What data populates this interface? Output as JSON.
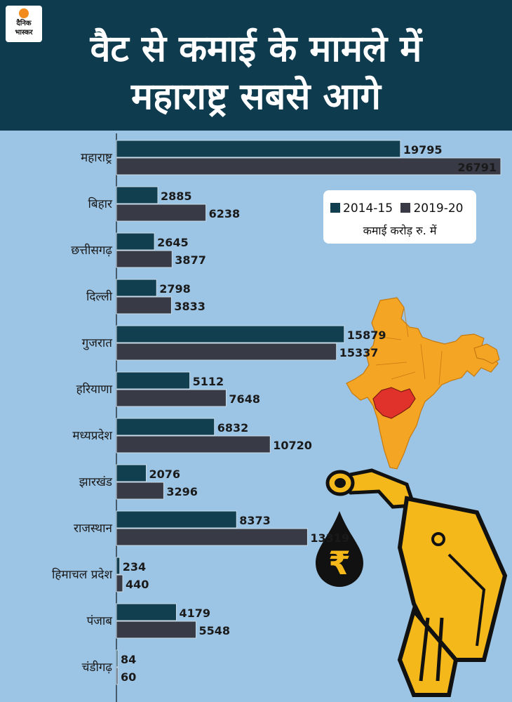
{
  "brand": {
    "name": "दैनिक भास्कर"
  },
  "title_line1": "वैट से कमाई के मामले में",
  "title_line2": "महाराष्ट्र सबसे आगे",
  "colors": {
    "series1": "#123f50",
    "series2": "#383a46",
    "background": "#9cc4e4",
    "header": "#0f3b4f",
    "highlight": "#e0322b",
    "map": "#f5a524"
  },
  "legend": {
    "note": "कमाई करोड़ रु. में"
  },
  "chart_data": {
    "type": "bar",
    "orientation": "horizontal",
    "categories": [
      "महाराष्ट्र",
      "बिहार",
      "छत्तीसगढ़",
      "दिल्ली",
      "गुजरात",
      "हरियाणा",
      "मध्यप्रदेश",
      "झारखंड",
      "राजस्थान",
      "हिमाचल प्रदेश",
      "पंजाब",
      "चंडीगढ़"
    ],
    "series": [
      {
        "name": "2014-15",
        "values": [
          19795,
          2885,
          2645,
          2798,
          15879,
          5112,
          6832,
          2076,
          8373,
          234,
          4179,
          84
        ]
      },
      {
        "name": "2019-20",
        "values": [
          26791,
          6238,
          3877,
          3833,
          15337,
          7648,
          10720,
          3296,
          13319,
          440,
          5548,
          60
        ]
      }
    ],
    "unit": "कमाई करोड़ रु. में",
    "legend_position": "right"
  },
  "icons": [
    "india-map-icon",
    "fuel-nozzle-icon",
    "rupee-drop-icon"
  ]
}
